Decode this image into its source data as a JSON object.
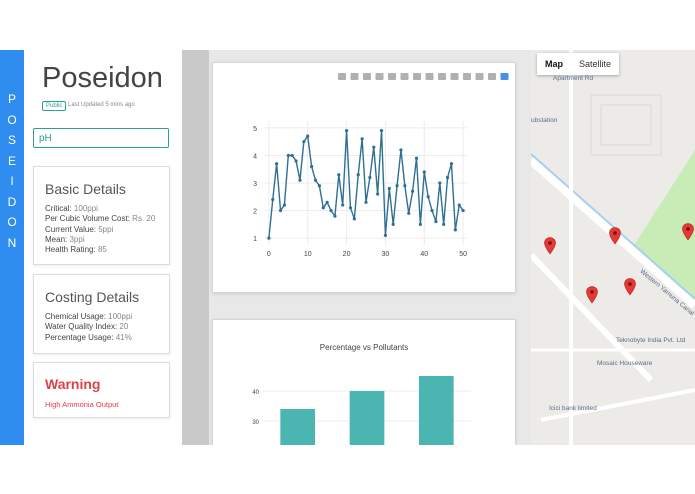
{
  "rail": {
    "letters": [
      "P",
      "O",
      "S",
      "E",
      "I",
      "D",
      "O",
      "N"
    ]
  },
  "sidebar": {
    "brand": "Poseidon",
    "badge": "Public",
    "updated": "Last Updated 5 mins ago",
    "search": {
      "value": "pH",
      "placeholder": "pH"
    }
  },
  "basic": {
    "title": "Basic Details",
    "rows": [
      {
        "label": "Critical:",
        "value": "100ppi"
      },
      {
        "label": "Per Cubic Volume Cost:",
        "value": "Rs. 20"
      },
      {
        "label": "Current Value:",
        "value": "5ppi"
      },
      {
        "label": "Mean:",
        "value": "3ppi"
      },
      {
        "label": "Health Rating:",
        "value": "85"
      }
    ]
  },
  "costing": {
    "title": "Costing Details",
    "rows": [
      {
        "label": "Chemical Usage:",
        "value": "100ppi"
      },
      {
        "label": "Water Quality Index:",
        "value": "20"
      },
      {
        "label": "Percentage Usage:",
        "value": "41%"
      }
    ]
  },
  "warning": {
    "title": "Warning",
    "text": "High Ammonia Output"
  },
  "toolbar_icons": [
    "camera-icon",
    "save-icon",
    "zoom-icon",
    "pan-icon",
    "box-select-icon",
    "lasso-icon",
    "zoom-in-icon",
    "zoom-out-icon",
    "autoscale-icon",
    "reset-axes-icon",
    "spike-lines-icon",
    "hover-closest-icon",
    "hover-compare-icon",
    "plotly-logo-icon"
  ],
  "chart_data": [
    {
      "type": "line",
      "title": "",
      "xlabel": "",
      "ylabel": "",
      "xlim": [
        -1,
        51
      ],
      "ylim": [
        0.75,
        5.25
      ],
      "xticks": [
        0,
        10,
        20,
        30,
        40,
        50
      ],
      "yticks": [
        1,
        2,
        3,
        4,
        5
      ],
      "grid": true,
      "color": "#2f6f96",
      "x": [
        0,
        1,
        2,
        3,
        4,
        5,
        6,
        7,
        8,
        9,
        10,
        11,
        12,
        13,
        14,
        15,
        16,
        17,
        18,
        19,
        20,
        21,
        22,
        23,
        24,
        25,
        26,
        27,
        28,
        29,
        30,
        31,
        32,
        33,
        34,
        35,
        36,
        37,
        38,
        39,
        40,
        41,
        42,
        43,
        44,
        45,
        46,
        47,
        48,
        49,
        50
      ],
      "y": [
        1.0,
        2.4,
        3.7,
        2.0,
        2.2,
        4.0,
        4.0,
        3.8,
        3.1,
        4.5,
        4.7,
        3.6,
        3.1,
        2.9,
        2.1,
        2.3,
        2.0,
        1.8,
        3.3,
        2.2,
        4.9,
        2.1,
        1.7,
        3.3,
        4.6,
        2.3,
        3.2,
        4.3,
        2.6,
        4.9,
        1.1,
        2.8,
        1.5,
        2.9,
        4.2,
        2.9,
        1.9,
        2.7,
        3.9,
        1.5,
        3.4,
        2.5,
        2.0,
        1.6,
        3.0,
        1.5,
        3.2,
        3.7,
        1.3,
        2.2,
        2.0
      ]
    },
    {
      "type": "bar",
      "title": "Percentage vs Pollutants",
      "xlabel": "",
      "ylabel": "",
      "ylim": [
        17,
        47
      ],
      "yticks": [
        30,
        40
      ],
      "grid": true,
      "color": "#4bb5b2",
      "categories": [
        "",
        "",
        ""
      ],
      "values": [
        34,
        40,
        45
      ]
    }
  ],
  "map": {
    "toggle": {
      "map": "Map",
      "satellite": "Satellite"
    },
    "labels": {
      "apartment": "Apartment Rd",
      "substation": "ubstation",
      "road": "Western Yamuna Canal",
      "company": "Teknobyte India Pvt. Ltd",
      "mosaic": "Mosaic Houseware",
      "bank": "Icici bank limited"
    },
    "colors": {
      "land": "#ecebe8",
      "road": "#ffffff",
      "park": "#c8ecb5",
      "water": "#a6cff2",
      "pin": "#e53935"
    }
  }
}
